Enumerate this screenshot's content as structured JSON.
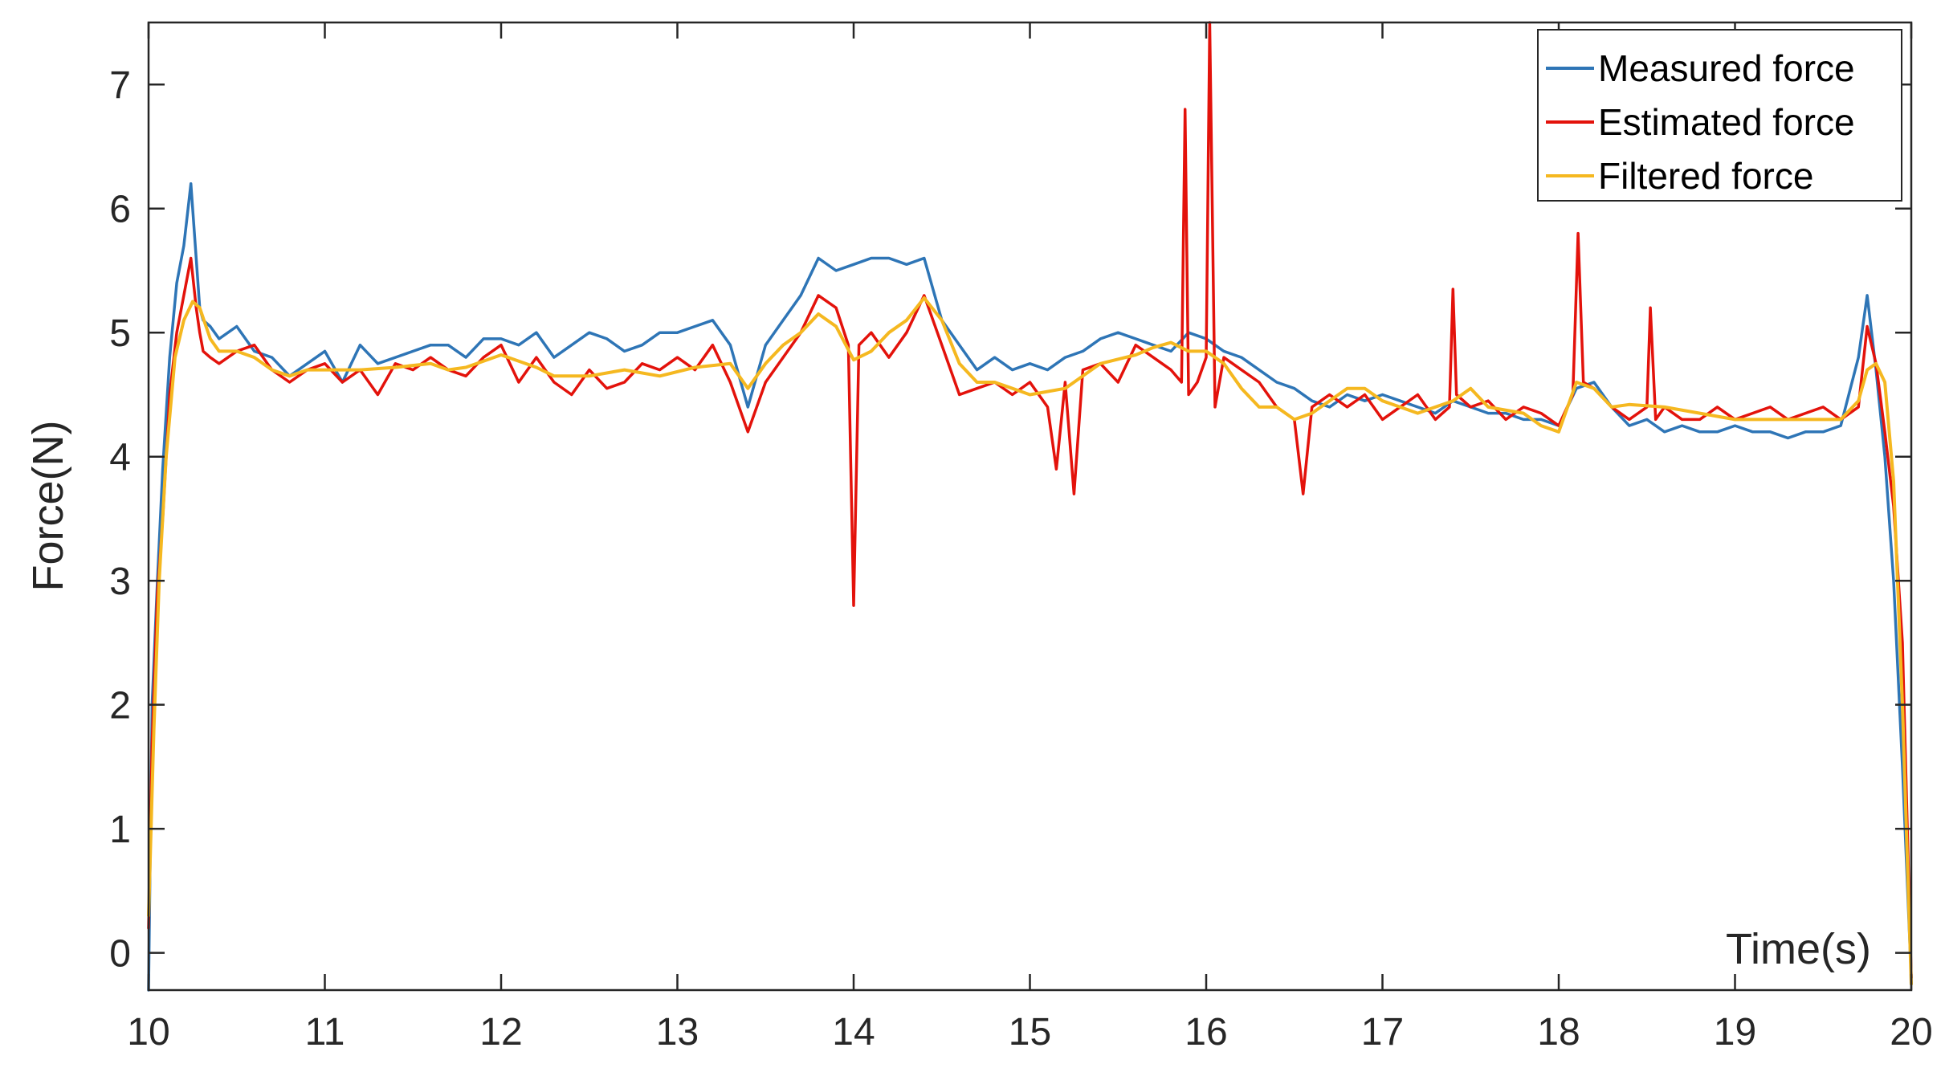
{
  "chart_data": {
    "type": "line",
    "title": "",
    "xlabel": "Time(s)",
    "ylabel": "Force(N)",
    "xlim": [
      10,
      20
    ],
    "ylim": [
      -0.3,
      7.5
    ],
    "xticks": [
      10,
      11,
      12,
      13,
      14,
      15,
      16,
      17,
      18,
      19,
      20
    ],
    "xtick_labels": [
      "10",
      "11",
      "12",
      "13",
      "14",
      "15",
      "16",
      "17",
      "18",
      "19",
      "20"
    ],
    "yticks": [
      0,
      1,
      2,
      3,
      4,
      5,
      6,
      7
    ],
    "ytick_labels": [
      "0",
      "1",
      "2",
      "3",
      "4",
      "5",
      "6",
      "7"
    ],
    "grid": false,
    "legend_position": "top-right",
    "series": [
      {
        "name": "Measured force",
        "color": "#2e75b6",
        "x": [
          10.0,
          10.02,
          10.05,
          10.08,
          10.12,
          10.16,
          10.2,
          10.24,
          10.27,
          10.29,
          10.31,
          10.35,
          10.4,
          10.5,
          10.6,
          10.7,
          10.8,
          10.9,
          11.0,
          11.1,
          11.2,
          11.3,
          11.4,
          11.5,
          11.6,
          11.7,
          11.8,
          11.9,
          12.0,
          12.1,
          12.2,
          12.3,
          12.4,
          12.5,
          12.6,
          12.7,
          12.8,
          12.9,
          13.0,
          13.1,
          13.2,
          13.3,
          13.4,
          13.5,
          13.6,
          13.7,
          13.8,
          13.9,
          14.0,
          14.1,
          14.2,
          14.3,
          14.4,
          14.5,
          14.6,
          14.7,
          14.8,
          14.9,
          15.0,
          15.1,
          15.2,
          15.3,
          15.4,
          15.5,
          15.6,
          15.7,
          15.8,
          15.9,
          16.0,
          16.1,
          16.2,
          16.3,
          16.4,
          16.5,
          16.6,
          16.7,
          16.8,
          16.9,
          17.0,
          17.1,
          17.2,
          17.3,
          17.4,
          17.5,
          17.6,
          17.7,
          17.8,
          17.9,
          18.0,
          18.1,
          18.2,
          18.3,
          18.4,
          18.5,
          18.6,
          18.7,
          18.8,
          18.9,
          19.0,
          19.1,
          19.2,
          19.3,
          19.4,
          19.5,
          19.6,
          19.7,
          19.75,
          19.8,
          19.85,
          19.9,
          19.95,
          20.0
        ],
        "values": [
          -0.3,
          2.0,
          3.0,
          3.9,
          4.8,
          5.4,
          5.7,
          6.2,
          5.6,
          5.2,
          5.1,
          5.05,
          4.95,
          5.05,
          4.85,
          4.8,
          4.65,
          4.75,
          4.85,
          4.6,
          4.9,
          4.75,
          4.8,
          4.85,
          4.9,
          4.9,
          4.8,
          4.95,
          4.95,
          4.9,
          5.0,
          4.8,
          4.9,
          5.0,
          4.95,
          4.85,
          4.9,
          5.0,
          5.0,
          5.05,
          5.1,
          4.9,
          4.4,
          4.9,
          5.1,
          5.3,
          5.6,
          5.5,
          5.55,
          5.6,
          5.6,
          5.55,
          5.6,
          5.1,
          4.9,
          4.7,
          4.8,
          4.7,
          4.75,
          4.7,
          4.8,
          4.85,
          4.95,
          5.0,
          4.95,
          4.9,
          4.85,
          5.0,
          4.95,
          4.85,
          4.8,
          4.7,
          4.6,
          4.55,
          4.45,
          4.4,
          4.5,
          4.45,
          4.5,
          4.45,
          4.4,
          4.35,
          4.45,
          4.4,
          4.35,
          4.35,
          4.3,
          4.3,
          4.25,
          4.55,
          4.6,
          4.4,
          4.25,
          4.3,
          4.2,
          4.25,
          4.2,
          4.2,
          4.25,
          4.2,
          4.2,
          4.15,
          4.2,
          4.2,
          4.25,
          4.8,
          5.3,
          4.7,
          4.0,
          3.0,
          1.5,
          -0.2
        ]
      },
      {
        "name": "Estimated force",
        "color": "#e3120b",
        "x": [
          10.0,
          10.02,
          10.05,
          10.08,
          10.12,
          10.16,
          10.2,
          10.24,
          10.27,
          10.29,
          10.31,
          10.35,
          10.4,
          10.5,
          10.6,
          10.7,
          10.8,
          10.9,
          11.0,
          11.1,
          11.2,
          11.3,
          11.4,
          11.5,
          11.6,
          11.7,
          11.8,
          11.9,
          12.0,
          12.1,
          12.2,
          12.3,
          12.4,
          12.5,
          12.6,
          12.7,
          12.8,
          12.9,
          13.0,
          13.1,
          13.2,
          13.3,
          13.4,
          13.5,
          13.6,
          13.7,
          13.8,
          13.9,
          13.97,
          14.0,
          14.03,
          14.1,
          14.2,
          14.3,
          14.4,
          14.5,
          14.6,
          14.7,
          14.8,
          14.9,
          15.0,
          15.1,
          15.15,
          15.2,
          15.25,
          15.3,
          15.4,
          15.5,
          15.6,
          15.7,
          15.8,
          15.86,
          15.88,
          15.9,
          15.95,
          16.0,
          16.02,
          16.05,
          16.1,
          16.2,
          16.3,
          16.4,
          16.5,
          16.55,
          16.6,
          16.7,
          16.8,
          16.9,
          17.0,
          17.1,
          17.2,
          17.3,
          17.38,
          17.4,
          17.42,
          17.5,
          17.6,
          17.7,
          17.8,
          17.9,
          18.0,
          18.08,
          18.11,
          18.14,
          18.2,
          18.3,
          18.4,
          18.5,
          18.52,
          18.55,
          18.6,
          18.7,
          18.8,
          18.9,
          19.0,
          19.1,
          19.2,
          19.3,
          19.4,
          19.5,
          19.6,
          19.7,
          19.75,
          19.8,
          19.85,
          19.9,
          19.95,
          20.0
        ],
        "values": [
          0.2,
          1.7,
          2.9,
          3.5,
          4.5,
          5.0,
          5.3,
          5.6,
          5.2,
          5.0,
          4.85,
          4.8,
          4.75,
          4.85,
          4.9,
          4.7,
          4.6,
          4.7,
          4.75,
          4.6,
          4.7,
          4.5,
          4.75,
          4.7,
          4.8,
          4.7,
          4.65,
          4.8,
          4.9,
          4.6,
          4.8,
          4.6,
          4.5,
          4.7,
          4.55,
          4.6,
          4.75,
          4.7,
          4.8,
          4.7,
          4.9,
          4.6,
          4.2,
          4.6,
          4.8,
          5.0,
          5.3,
          5.2,
          4.9,
          2.8,
          4.9,
          5.0,
          4.8,
          5.0,
          5.3,
          4.9,
          4.5,
          4.55,
          4.6,
          4.5,
          4.6,
          4.4,
          3.9,
          4.6,
          3.7,
          4.7,
          4.75,
          4.6,
          4.9,
          4.8,
          4.7,
          4.6,
          6.8,
          4.5,
          4.6,
          4.8,
          7.5,
          4.4,
          4.8,
          4.7,
          4.6,
          4.4,
          4.3,
          3.7,
          4.4,
          4.5,
          4.4,
          4.5,
          4.3,
          4.4,
          4.5,
          4.3,
          4.4,
          5.35,
          4.5,
          4.4,
          4.45,
          4.3,
          4.4,
          4.35,
          4.25,
          4.5,
          5.8,
          4.6,
          4.55,
          4.4,
          4.3,
          4.4,
          5.2,
          4.3,
          4.4,
          4.3,
          4.3,
          4.4,
          4.3,
          4.35,
          4.4,
          4.3,
          4.35,
          4.4,
          4.3,
          4.4,
          5.05,
          4.75,
          4.2,
          3.6,
          2.5,
          -0.2
        ]
      },
      {
        "name": "Filtered force",
        "color": "#f5b820",
        "x": [
          10.0,
          10.03,
          10.06,
          10.1,
          10.15,
          10.2,
          10.25,
          10.29,
          10.35,
          10.4,
          10.5,
          10.6,
          10.7,
          10.8,
          10.9,
          11.0,
          11.2,
          11.4,
          11.6,
          11.7,
          11.8,
          12.0,
          12.2,
          12.3,
          12.5,
          12.7,
          12.9,
          13.1,
          13.3,
          13.4,
          13.5,
          13.6,
          13.7,
          13.8,
          13.9,
          14.0,
          14.1,
          14.2,
          14.3,
          14.4,
          14.5,
          14.6,
          14.7,
          14.8,
          14.9,
          15.0,
          15.2,
          15.4,
          15.6,
          15.7,
          15.8,
          15.9,
          16.0,
          16.1,
          16.2,
          16.3,
          16.4,
          16.5,
          16.6,
          16.7,
          16.8,
          16.9,
          17.0,
          17.1,
          17.2,
          17.4,
          17.5,
          17.6,
          17.8,
          17.9,
          18.0,
          18.05,
          18.1,
          18.2,
          18.3,
          18.4,
          18.6,
          18.8,
          19.0,
          19.2,
          19.4,
          19.5,
          19.6,
          19.7,
          19.75,
          19.8,
          19.85,
          19.9,
          19.95,
          20.0
        ],
        "values": [
          0.3,
          1.8,
          3.0,
          4.0,
          4.8,
          5.1,
          5.25,
          5.2,
          4.95,
          4.85,
          4.85,
          4.8,
          4.7,
          4.65,
          4.7,
          4.7,
          4.7,
          4.72,
          4.75,
          4.7,
          4.72,
          4.82,
          4.72,
          4.65,
          4.65,
          4.7,
          4.65,
          4.72,
          4.75,
          4.55,
          4.75,
          4.9,
          5.0,
          5.15,
          5.05,
          4.78,
          4.85,
          5.0,
          5.1,
          5.28,
          5.1,
          4.75,
          4.6,
          4.6,
          4.55,
          4.5,
          4.55,
          4.75,
          4.82,
          4.88,
          4.92,
          4.85,
          4.85,
          4.75,
          4.55,
          4.4,
          4.4,
          4.3,
          4.35,
          4.45,
          4.55,
          4.55,
          4.45,
          4.4,
          4.35,
          4.45,
          4.55,
          4.4,
          4.35,
          4.25,
          4.2,
          4.4,
          4.6,
          4.55,
          4.4,
          4.42,
          4.4,
          4.35,
          4.3,
          4.3,
          4.3,
          4.3,
          4.3,
          4.45,
          4.7,
          4.75,
          4.6,
          3.8,
          2.0,
          -0.25
        ]
      }
    ]
  }
}
